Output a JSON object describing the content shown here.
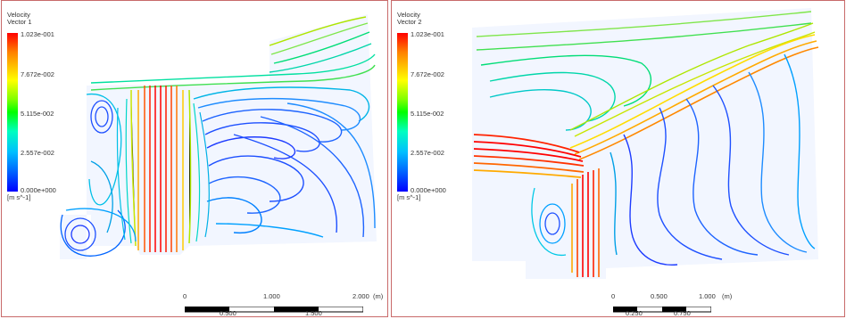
{
  "panels": [
    {
      "legend": {
        "title_line1": "Velocity",
        "title_line2": "Vector 1",
        "ticks": [
          "1.023e-001",
          "7.672e-002",
          "5.115e-002",
          "2.557e-002",
          "0.000e+000"
        ],
        "unit": "[m s^-1]"
      },
      "scale": {
        "top_labels": [
          "0",
          "1.000",
          "2.000",
          "(m)"
        ],
        "bottom_labels": [
          "0.500",
          "1.500"
        ]
      }
    },
    {
      "legend": {
        "title_line1": "Velocity",
        "title_line2": "Vector 2",
        "ticks": [
          "1.023e-001",
          "7.672e-002",
          "5.115e-002",
          "2.557e-002",
          "0.000e+000"
        ],
        "unit": "[m s^-1]"
      },
      "scale": {
        "top_labels": [
          "0",
          "0.500",
          "1.000",
          "(m)"
        ],
        "bottom_labels": [
          "0.250",
          "0.750"
        ]
      }
    }
  ],
  "colors": {
    "max": "#ff0000",
    "high": "#ffaa00",
    "mid_high": "#c8e600",
    "mid": "#00dd55",
    "mid_low": "#00c8e6",
    "low": "#1e50ff",
    "min": "#0000ff",
    "border": "#c86a6a"
  }
}
